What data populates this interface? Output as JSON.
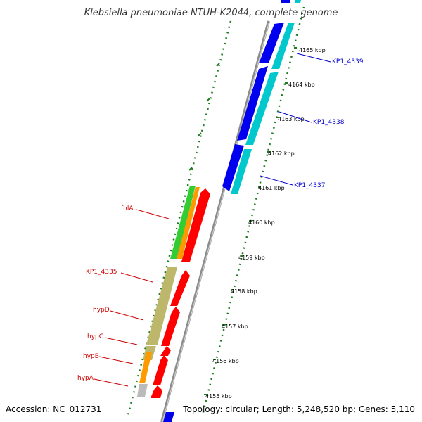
{
  "title": "Klebsiella pneumoniae NTUH-K2044, complete genome",
  "accession": "Accession: NC_012731",
  "topology": "Topology: circular; Length: 5,248,520 bp; Genes: 5,110",
  "colors": {
    "backbone": "#8c8c8c",
    "tick_green": "#1e7a1e",
    "blue_gene": "#0000ee",
    "cyan_gene": "#00c8cc",
    "red_gene": "#ff0000",
    "green_gene": "#33cc33",
    "orange_gene": "#ff9900",
    "khaki_gene": "#bdb76b",
    "gray_gene": "#bbbbbb",
    "label_blue": "#0000cc",
    "label_red": "#cc0000"
  },
  "ticks": [
    {
      "label": "4165 kbp"
    },
    {
      "label": "4164 kbp"
    },
    {
      "label": "4163 kbp"
    },
    {
      "label": "4162 kbp"
    },
    {
      "label": "4161 kbp"
    },
    {
      "label": "4160 kbp"
    },
    {
      "label": "4159 kbp"
    },
    {
      "label": "4158 kbp"
    },
    {
      "label": "4157 kbp"
    },
    {
      "label": "4156 kbp"
    },
    {
      "label": "4155 kbp"
    }
  ],
  "gene_labels": {
    "kp1_4339": "KP1_4339",
    "kp1_4338": "KP1_4338",
    "kp1_4337": "KP1_4337",
    "fhla": "fhlA",
    "kp1_4335": "KP1_4335",
    "hypd": "hypD",
    "hypc": "hypC",
    "hypb": "hypB",
    "hypa": "hypA"
  }
}
